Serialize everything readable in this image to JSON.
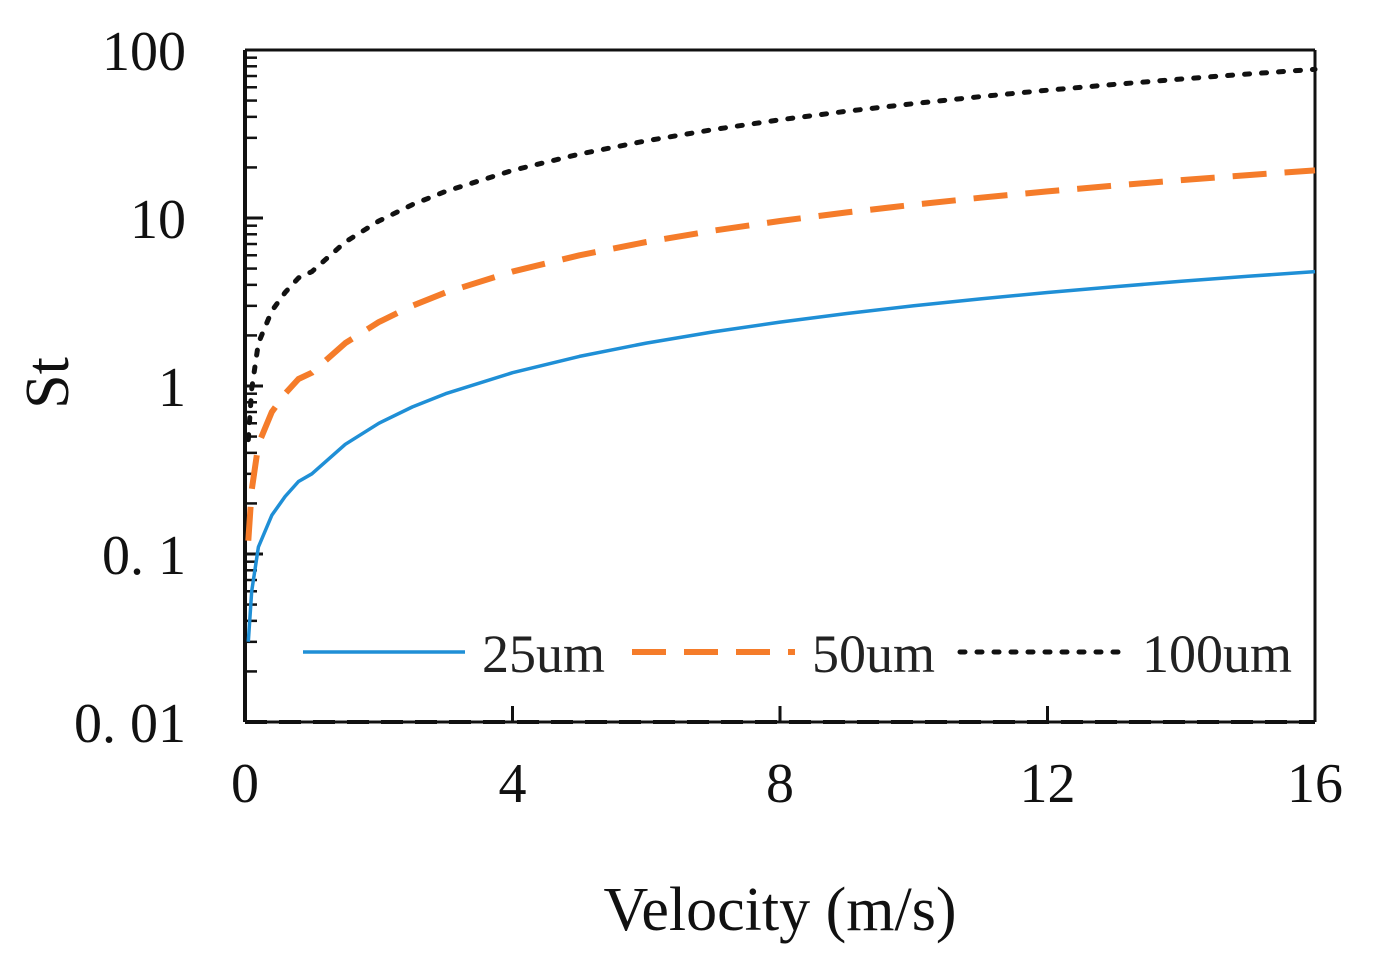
{
  "chart_data": {
    "type": "line",
    "xlabel": "Velocity (m/s)",
    "ylabel": "St",
    "xlim": [
      0,
      16
    ],
    "ylim": [
      0.01,
      100
    ],
    "yscale": "log",
    "xticks": [
      "0",
      "4",
      "8",
      "12",
      "16"
    ],
    "yticks": [
      "0. 01",
      "0. 1",
      "1",
      "10",
      "100"
    ],
    "legend_position": "bottom",
    "grid": false,
    "x": [
      0.05,
      0.1,
      0.2,
      0.4,
      0.6,
      0.8,
      1,
      1.5,
      2,
      2.5,
      3,
      4,
      5,
      6,
      7,
      8,
      9,
      10,
      11,
      12,
      13,
      14,
      15,
      16
    ],
    "series": [
      {
        "name": "25um",
        "color": "#1f8fd6",
        "style": "solid",
        "values": [
          0.03,
          0.06,
          0.11,
          0.17,
          0.22,
          0.27,
          0.3,
          0.45,
          0.6,
          0.75,
          0.9,
          1.2,
          1.5,
          1.8,
          2.1,
          2.4,
          2.7,
          3.0,
          3.3,
          3.6,
          3.9,
          4.2,
          4.5,
          4.8
        ]
      },
      {
        "name": "50um",
        "color": "#f57c2a",
        "style": "dashed",
        "values": [
          0.12,
          0.24,
          0.45,
          0.7,
          0.9,
          1.1,
          1.2,
          1.8,
          2.4,
          3.0,
          3.6,
          4.8,
          6.0,
          7.2,
          8.4,
          9.6,
          10.8,
          12.0,
          13.2,
          14.4,
          15.6,
          16.8,
          18.0,
          19.2
        ]
      },
      {
        "name": "100um",
        "color": "#111111",
        "style": "dotted",
        "values": [
          0.48,
          0.96,
          1.8,
          2.8,
          3.6,
          4.4,
          4.8,
          7.2,
          9.6,
          12.0,
          14.4,
          19.2,
          24.0,
          28.8,
          33.6,
          38.4,
          43.2,
          48.0,
          52.8,
          57.6,
          62.4,
          67.2,
          72.0,
          76.8
        ]
      }
    ]
  }
}
